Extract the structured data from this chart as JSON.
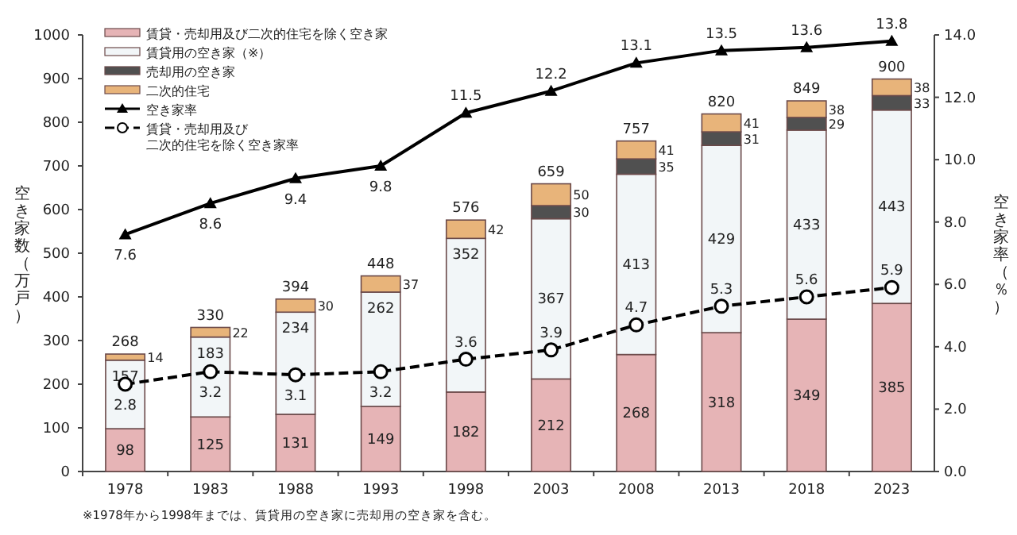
{
  "chart_data": {
    "type": "bar",
    "stacked": true,
    "categories": [
      "1978",
      "1983",
      "1988",
      "1993",
      "1998",
      "2003",
      "2008",
      "2013",
      "2018",
      "2023"
    ],
    "series": [
      {
        "name": "賃貸・売却用及び二次的住宅を除く空き家",
        "color": "#e6b4b6",
        "values": [
          98,
          125,
          131,
          149,
          182,
          212,
          268,
          318,
          349,
          385
        ]
      },
      {
        "name": "賃貸用の空き家（※）",
        "color": "#f2f6f8",
        "values": [
          157,
          183,
          234,
          262,
          352,
          367,
          413,
          429,
          433,
          443
        ]
      },
      {
        "name": "売却用の空き家",
        "color": "#505050",
        "values": [
          null,
          null,
          null,
          null,
          null,
          30,
          35,
          31,
          29,
          33
        ]
      },
      {
        "name": "二次的住宅",
        "color": "#e8b47a",
        "values": [
          14,
          22,
          30,
          37,
          42,
          50,
          41,
          41,
          38,
          38
        ]
      },
      {
        "name": "空き家率",
        "type": "line",
        "axis": "y2",
        "color": "#000000",
        "marker": "triangle",
        "line_style": "solid",
        "values": [
          7.6,
          8.6,
          9.4,
          9.8,
          11.5,
          12.2,
          13.1,
          13.5,
          13.6,
          13.8
        ]
      },
      {
        "name": "賃貸・売却用及び二次的住宅を除く空き家率",
        "type": "line",
        "axis": "y2",
        "color": "#000000",
        "marker": "circle",
        "line_style": "dashed",
        "values": [
          2.8,
          3.2,
          3.1,
          3.2,
          3.6,
          3.9,
          4.7,
          5.3,
          5.6,
          5.9
        ]
      }
    ],
    "totals": [
      "268",
      "330",
      "394",
      "448",
      "576",
      "659",
      "757",
      "820",
      "849",
      "900"
    ],
    "data_labels": true,
    "ylim": [
      0,
      1000
    ],
    "yticks": [
      0,
      100,
      200,
      300,
      400,
      500,
      600,
      700,
      800,
      900,
      1000
    ],
    "y2lim": [
      0,
      14
    ],
    "y2ticks": [
      {
        "value": 0,
        "label": "0.0"
      },
      {
        "value": 2,
        "label": "2.0"
      },
      {
        "value": 4,
        "label": "4.0"
      },
      {
        "value": 6,
        "label": "6.0"
      },
      {
        "value": 8,
        "label": "8.0"
      },
      {
        "value": 10,
        "label": "10.0"
      },
      {
        "value": 12,
        "label": "12.0"
      },
      {
        "value": 14,
        "label": "14.0"
      }
    ],
    "ylabel": "空き家数（万戸）",
    "y2label": "空き家率（％）",
    "annotations": [
      "※1978年から1998年までは、賃貸用の空き家に売却用の空き家を含む。"
    ],
    "legend": "top left",
    "grid": false
  }
}
